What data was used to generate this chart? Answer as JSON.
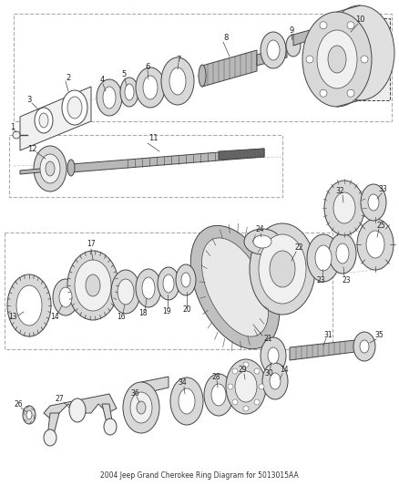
{
  "title": "2004 Jeep Grand Cherokee Ring Diagram for 5013015AA",
  "bg_color": "#ffffff",
  "lc": "#444444",
  "figsize": [
    4.38,
    5.33
  ],
  "dpi": 100,
  "gray_light": "#d8d8d8",
  "gray_mid": "#b8b8b8",
  "gray_dark": "#888888",
  "white": "#ffffff",
  "near_white": "#f0f0f0"
}
